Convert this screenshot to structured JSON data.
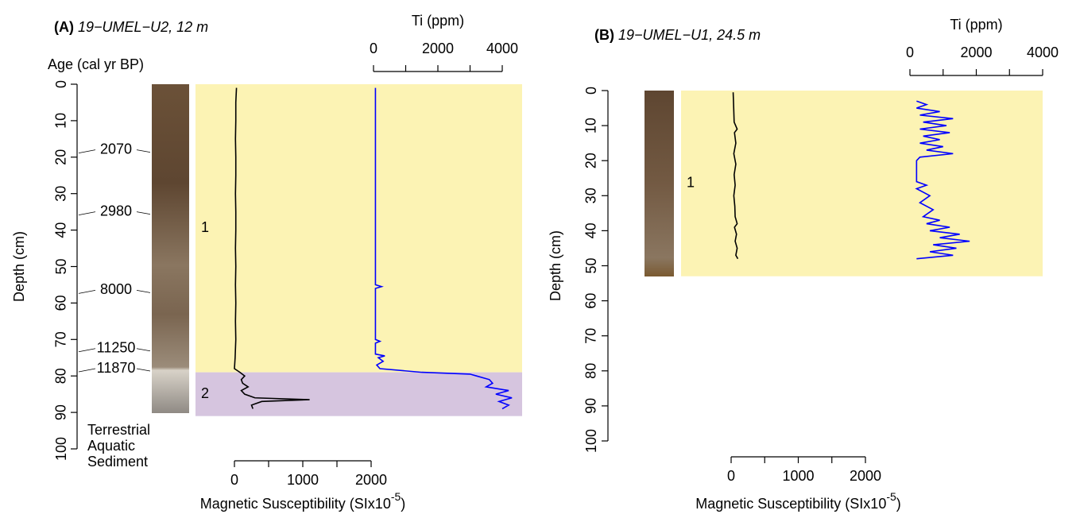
{
  "chart_data": [
    {
      "type": "core_profile",
      "title_tag": "(A)",
      "title": "19−UMEL−U2, 12 m",
      "ylabel": "Depth (cm)",
      "ylim": [
        0,
        100
      ],
      "yticks": [
        0,
        10,
        20,
        30,
        40,
        50,
        60,
        70,
        80,
        90,
        100
      ],
      "xlabel": [
        "Magnetic Susceptibility (SIx10",
        "-5",
        ")"
      ],
      "xlim": [
        0,
        2000
      ],
      "xticks": [
        0,
        1000,
        2000
      ],
      "xminor_ticks": [
        500,
        1500
      ],
      "x2label": "Ti (ppm)",
      "x2lim": [
        0,
        4000
      ],
      "x2ticks": [
        0,
        2000,
        4000
      ],
      "x2minor_ticks": [
        1000,
        3000
      ],
      "units": [
        {
          "name": "1",
          "top": 0,
          "bottom": 79,
          "color": "#fcf3b4"
        },
        {
          "name": "2",
          "top": 79,
          "bottom": 91,
          "color": "#d6c5df"
        }
      ],
      "age_title": "Age (cal yr BP)",
      "age_legend": [
        {
          "name": "Terrestrial",
          "color": "#2e3192"
        },
        {
          "name": "Aquatic",
          "color": "#000000"
        },
        {
          "name": "Sediment",
          "color": "#ff0000"
        }
      ],
      "ages": [
        {
          "age": 2070,
          "depth": 18,
          "group": "Aquatic"
        },
        {
          "age": 2980,
          "depth": 35,
          "group": "Terrestrial"
        },
        {
          "age": 8000,
          "depth": 56.5,
          "group": "Terrestrial"
        },
        {
          "age": 11250,
          "depth": 72.5,
          "group": "Aquatic"
        },
        {
          "age": 11870,
          "depth": 78,
          "group": "Aquatic"
        }
      ],
      "series": [
        {
          "name": "Magnetic Susceptibility",
          "axis": "x",
          "color": "#000000",
          "depth": [
            1,
            5,
            10,
            15,
            20,
            25,
            30,
            35,
            40,
            45,
            50,
            55,
            60,
            65,
            70,
            75,
            78,
            79,
            80,
            81,
            82,
            83,
            84,
            85,
            86,
            86.5,
            87,
            88,
            89
          ],
          "values": [
            30,
            20,
            20,
            15,
            20,
            20,
            15,
            20,
            20,
            15,
            20,
            15,
            20,
            15,
            20,
            10,
            0,
            80,
            150,
            100,
            120,
            200,
            100,
            150,
            300,
            1100,
            400,
            250,
            270
          ]
        },
        {
          "name": "Ti",
          "axis": "x2",
          "color": "#0000ff",
          "depth": [
            1,
            10,
            20,
            30,
            40,
            50,
            55,
            55.5,
            56,
            60,
            70,
            70.5,
            71,
            74,
            74.5,
            75,
            76,
            77,
            78,
            79,
            79.5,
            80,
            81,
            82,
            83,
            84,
            85,
            86,
            87,
            88,
            89
          ],
          "values": [
            60,
            60,
            60,
            60,
            60,
            60,
            60,
            250,
            60,
            60,
            60,
            200,
            60,
            60,
            350,
            150,
            300,
            100,
            200,
            1500,
            3000,
            3200,
            3600,
            3700,
            3500,
            4200,
            3800,
            4300,
            3900,
            4200,
            4000
          ]
        }
      ]
    },
    {
      "type": "core_profile",
      "title_tag": "(B)",
      "title": "19−UMEL−U1, 24.5 m",
      "ylabel": "Depth (cm)",
      "ylim": [
        0,
        100
      ],
      "yticks": [
        0,
        10,
        20,
        30,
        40,
        50,
        60,
        70,
        80,
        90,
        100
      ],
      "xlabel": [
        "Magnetic Susceptibility (SIx10",
        "-5",
        ")"
      ],
      "xlim": [
        0,
        2000
      ],
      "xticks": [
        0,
        1000,
        2000
      ],
      "xminor_ticks": [
        500,
        1500
      ],
      "x2label": "Ti (ppm)",
      "x2lim": [
        0,
        4000
      ],
      "x2ticks": [
        0,
        2000,
        4000
      ],
      "x2minor_ticks": [
        1000,
        3000
      ],
      "units": [
        {
          "name": "1",
          "top": 0,
          "bottom": 53,
          "color": "#fcf3b4"
        }
      ],
      "series": [
        {
          "name": "Magnetic Susceptibility",
          "axis": "x",
          "color": "#000000",
          "depth": [
            0.5,
            3,
            6,
            9,
            11,
            12,
            15,
            18,
            21,
            24,
            27,
            30,
            33,
            36,
            38,
            39,
            41,
            43,
            45,
            47,
            48
          ],
          "values": [
            30,
            35,
            40,
            45,
            90,
            50,
            70,
            40,
            70,
            45,
            60,
            40,
            55,
            60,
            90,
            50,
            80,
            60,
            90,
            70,
            100
          ]
        },
        {
          "name": "Ti",
          "axis": "x2",
          "color": "#0000ff",
          "depth": [
            3,
            4,
            5,
            6,
            7,
            8,
            9,
            10,
            11,
            12,
            13,
            14,
            15,
            16,
            17,
            18,
            19,
            20,
            26,
            27,
            28,
            30,
            32,
            34,
            36,
            37,
            38,
            39,
            40,
            41,
            42,
            43,
            44,
            45,
            46,
            47,
            48
          ],
          "values": [
            200,
            500,
            200,
            900,
            300,
            1300,
            400,
            1100,
            300,
            1200,
            400,
            900,
            300,
            1000,
            500,
            1300,
            300,
            200,
            200,
            500,
            200,
            600,
            300,
            700,
            400,
            900,
            500,
            1200,
            600,
            1500,
            900,
            1800,
            700,
            1400,
            600,
            1300,
            200
          ]
        }
      ]
    }
  ]
}
